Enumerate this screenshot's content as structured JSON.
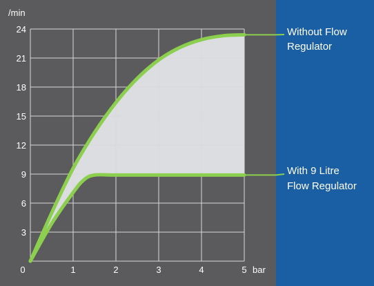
{
  "chart_data": {
    "type": "line",
    "colors": {
      "page_background": "#1a5fa3",
      "panel_background": "#5b5a5c",
      "plot_background": "#5b5a5c",
      "shaded_region": "#dcdde1",
      "grid": "#d9d9d9",
      "series": "#8ccf4e",
      "callout_line": "#8ccf4e",
      "text": "#ffffff"
    },
    "y_unit_label": "/min",
    "x_unit_label": "bar",
    "xlim": [
      0,
      5
    ],
    "ylim": [
      0,
      24
    ],
    "x_ticks": [
      0,
      1,
      2,
      3,
      4,
      5
    ],
    "y_ticks": [
      0,
      3,
      6,
      9,
      12,
      15,
      18,
      21,
      24
    ],
    "x_tick_labels": [
      "0",
      "1",
      "2",
      "3",
      "4",
      "5"
    ],
    "y_tick_labels": [
      "0",
      "3",
      "6",
      "9",
      "12",
      "15",
      "18",
      "21",
      "24"
    ],
    "grid": true,
    "shaded_between_series": true,
    "series": [
      {
        "name": "Without Flow Regulator",
        "x": [
          0,
          0.5,
          1.0,
          1.5,
          2.0,
          2.5,
          3.0,
          3.5,
          4.0,
          4.5,
          5.0
        ],
        "y": [
          0,
          5.0,
          9.6,
          13.3,
          16.4,
          18.9,
          20.8,
          22.1,
          22.9,
          23.3,
          23.4
        ]
      },
      {
        "name": "With 9 Litre Flow Regulator",
        "x": [
          0,
          0.5,
          1.0,
          1.25,
          1.5,
          2.0,
          3.0,
          4.0,
          5.0
        ],
        "y": [
          0,
          3.9,
          7.1,
          8.4,
          8.9,
          8.9,
          8.9,
          8.9,
          8.9
        ]
      }
    ],
    "annotations": [
      {
        "series_index": 0,
        "lines": [
          "Without Flow",
          "Regulator"
        ],
        "anchor_x": 5.0,
        "anchor_y": 23.4
      },
      {
        "series_index": 1,
        "lines": [
          "With 9 Litre",
          "Flow Regulator"
        ],
        "anchor_x": 5.0,
        "anchor_y": 8.9
      }
    ]
  }
}
